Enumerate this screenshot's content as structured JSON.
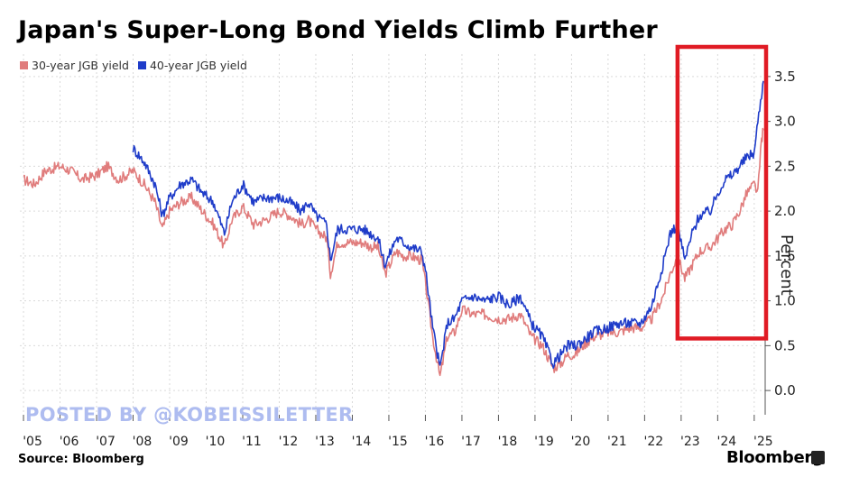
{
  "chart_data": {
    "type": "line",
    "title": "Japan's Super-Long Bond Yields Climb Further",
    "ylabel": "Percent",
    "xlabel": "",
    "ylim": [
      -0.25,
      3.75
    ],
    "xlim": [
      2004.9,
      2025.3
    ],
    "yticks": [
      0.0,
      0.5,
      1.0,
      1.5,
      2.0,
      2.5,
      3.0,
      3.5
    ],
    "ytick_labels": [
      "0.0",
      "0.5",
      "1.0",
      "1.5",
      "2.0",
      "2.5",
      "3.0",
      "3.5"
    ],
    "xticks": [
      2005,
      2006,
      2007,
      2008,
      2009,
      2010,
      2011,
      2012,
      2013,
      2014,
      2015,
      2016,
      2017,
      2018,
      2019,
      2020,
      2021,
      2022,
      2023,
      2024,
      2025
    ],
    "xtick_labels": [
      "'05",
      "'06",
      "'07",
      "'08",
      "'09",
      "'10",
      "'11",
      "'12",
      "'13",
      "'14",
      "'15",
      "'16",
      "'17",
      "'18",
      "'19",
      "'20",
      "'21",
      "'22",
      "'23",
      "'24",
      "'25"
    ],
    "grid": true,
    "legend_position": "top-left",
    "highlight_box": {
      "x_range": [
        2023.0,
        2025.3
      ],
      "y_range": [
        0.6,
        3.75
      ],
      "color": "#e01b24"
    },
    "series": [
      {
        "name": "30-year JGB yield",
        "color": "#e07c7c",
        "x": [
          2005.0,
          2005.3,
          2005.6,
          2006.0,
          2006.3,
          2006.6,
          2007.0,
          2007.3,
          2007.6,
          2008.0,
          2008.3,
          2008.6,
          2008.8,
          2009.0,
          2009.3,
          2009.6,
          2009.9,
          2010.2,
          2010.5,
          2010.7,
          2011.0,
          2011.3,
          2011.6,
          2012.0,
          2012.3,
          2012.6,
          2012.8,
          2013.0,
          2013.3,
          2013.4,
          2013.6,
          2014.0,
          2014.3,
          2014.5,
          2014.7,
          2014.9,
          2015.2,
          2015.4,
          2015.6,
          2015.9,
          2016.0,
          2016.2,
          2016.4,
          2016.6,
          2016.8,
          2017.0,
          2017.3,
          2017.6,
          2018.0,
          2018.3,
          2018.6,
          2018.9,
          2019.2,
          2019.5,
          2019.7,
          2019.9,
          2020.1,
          2020.3,
          2020.6,
          2021.0,
          2021.3,
          2021.6,
          2021.9,
          2022.2,
          2022.5,
          2022.7,
          2022.9,
          2023.1,
          2023.3,
          2023.5,
          2023.8,
          2024.0,
          2024.2,
          2024.4,
          2024.6,
          2024.8,
          2025.0,
          2025.1,
          2025.2,
          2025.25
        ],
        "y": [
          2.35,
          2.3,
          2.45,
          2.5,
          2.45,
          2.35,
          2.4,
          2.5,
          2.35,
          2.45,
          2.3,
          2.1,
          1.8,
          2.0,
          2.1,
          2.15,
          2.0,
          1.85,
          1.6,
          1.9,
          2.05,
          1.85,
          1.9,
          2.0,
          1.95,
          1.85,
          1.9,
          1.8,
          1.7,
          1.3,
          1.65,
          1.65,
          1.65,
          1.6,
          1.6,
          1.3,
          1.55,
          1.5,
          1.5,
          1.45,
          1.2,
          0.6,
          0.15,
          0.6,
          0.65,
          0.9,
          0.85,
          0.85,
          0.8,
          0.8,
          0.85,
          0.6,
          0.5,
          0.25,
          0.3,
          0.4,
          0.4,
          0.5,
          0.6,
          0.65,
          0.65,
          0.7,
          0.7,
          0.8,
          1.05,
          1.3,
          1.5,
          1.25,
          1.4,
          1.55,
          1.6,
          1.7,
          1.8,
          1.85,
          2.0,
          2.2,
          2.3,
          2.2,
          2.8,
          2.9
        ]
      },
      {
        "name": "40-year JGB yield",
        "color": "#1f3cc9",
        "x": [
          2008.0,
          2008.3,
          2008.6,
          2008.8,
          2009.0,
          2009.3,
          2009.6,
          2009.9,
          2010.2,
          2010.5,
          2010.7,
          2011.0,
          2011.3,
          2011.6,
          2012.0,
          2012.3,
          2012.6,
          2012.8,
          2013.0,
          2013.3,
          2013.4,
          2013.6,
          2014.0,
          2014.3,
          2014.5,
          2014.7,
          2014.9,
          2015.2,
          2015.4,
          2015.6,
          2015.9,
          2016.0,
          2016.2,
          2016.4,
          2016.6,
          2016.8,
          2017.0,
          2017.3,
          2017.6,
          2018.0,
          2018.3,
          2018.6,
          2018.9,
          2019.2,
          2019.5,
          2019.7,
          2019.9,
          2020.1,
          2020.3,
          2020.6,
          2021.0,
          2021.3,
          2021.6,
          2021.9,
          2022.2,
          2022.5,
          2022.7,
          2022.9,
          2023.1,
          2023.3,
          2023.5,
          2023.8,
          2024.0,
          2024.2,
          2024.4,
          2024.6,
          2024.8,
          2025.0,
          2025.1,
          2025.2,
          2025.25
        ],
        "y": [
          2.7,
          2.55,
          2.3,
          1.95,
          2.15,
          2.3,
          2.35,
          2.2,
          2.1,
          1.75,
          2.1,
          2.3,
          2.1,
          2.15,
          2.15,
          2.1,
          2.0,
          2.1,
          1.95,
          1.85,
          1.45,
          1.8,
          1.8,
          1.8,
          1.75,
          1.7,
          1.4,
          1.7,
          1.65,
          1.6,
          1.55,
          1.35,
          0.7,
          0.25,
          0.75,
          0.8,
          1.0,
          1.05,
          1.0,
          1.05,
          0.95,
          1.05,
          0.75,
          0.6,
          0.3,
          0.4,
          0.5,
          0.5,
          0.55,
          0.65,
          0.7,
          0.75,
          0.75,
          0.75,
          0.95,
          1.4,
          1.75,
          1.85,
          1.45,
          1.75,
          1.95,
          2.0,
          2.2,
          2.35,
          2.4,
          2.5,
          2.6,
          2.65,
          3.0,
          3.3,
          3.45
        ]
      }
    ]
  },
  "legend": {
    "items": [
      {
        "label": "30-year JGB yield",
        "color": "#e07c7c"
      },
      {
        "label": "40-year JGB yield",
        "color": "#1f3cc9"
      }
    ]
  },
  "footer": {
    "source": "Source: Bloomberg",
    "brand": "Bloomberg"
  },
  "watermark": "POSTED BY @KOBEISSILETTER"
}
